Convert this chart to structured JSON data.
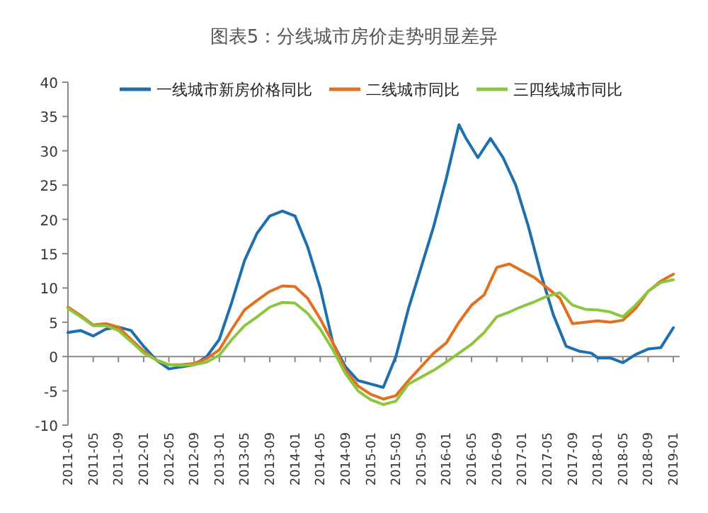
{
  "chart_data": {
    "type": "line",
    "title": "图表5：分线城市房价走势明显差异",
    "legend": "top",
    "x": [
      "2011-01",
      "2011-03",
      "2011-05",
      "2011-07",
      "2011-09",
      "2011-11",
      "2012-01",
      "2012-03",
      "2012-05",
      "2012-07",
      "2012-09",
      "2012-11",
      "2013-01",
      "2013-03",
      "2013-05",
      "2013-07",
      "2013-09",
      "2013-11",
      "2014-01",
      "2014-03",
      "2014-05",
      "2014-07",
      "2014-09",
      "2014-11",
      "2015-01",
      "2015-03",
      "2015-05",
      "2015-07",
      "2015-09",
      "2015-11",
      "2016-01",
      "2016-03",
      "2016-05",
      "2016-07",
      "2016-09",
      "2016-11",
      "2017-01",
      "2017-03",
      "2017-05",
      "2017-07",
      "2017-09",
      "2017-11",
      "2018-01",
      "2018-03",
      "2018-05",
      "2018-07",
      "2018-09",
      "2018-11",
      "2019-01"
    ],
    "xlim": [
      "2011-01",
      "2019-02"
    ],
    "xticks": [
      "2011-01",
      "2011-05",
      "2011-09",
      "2012-01",
      "2012-05",
      "2012-09",
      "2013-01",
      "2013-05",
      "2013-09",
      "2014-01",
      "2014-05",
      "2014-09",
      "2015-01",
      "2015-05",
      "2015-09",
      "2016-01",
      "2016-05",
      "2016-09",
      "2017-01",
      "2017-05",
      "2017-09",
      "2018-01",
      "2018-05",
      "2018-09",
      "2019-01"
    ],
    "ylim": [
      -10,
      40
    ],
    "yticks": [
      -10,
      -5,
      0,
      5,
      10,
      15,
      20,
      25,
      30,
      35,
      40
    ],
    "series": [
      {
        "name": "一线城市新房价格同比",
        "color": "#1f6fad",
        "x": [
          "2011-01",
          "2011-03",
          "2011-05",
          "2011-07",
          "2011-09",
          "2011-11",
          "2012-01",
          "2012-03",
          "2012-05",
          "2012-07",
          "2012-09",
          "2012-11",
          "2013-01",
          "2013-03",
          "2013-05",
          "2013-07",
          "2013-09",
          "2013-11",
          "2014-01",
          "2014-03",
          "2014-05",
          "2014-07",
          "2014-09",
          "2014-11",
          "2015-01",
          "2015-03",
          "2015-05",
          "2015-07",
          "2015-09",
          "2015-11",
          "2016-01",
          "2016-03",
          "2016-04",
          "2016-06",
          "2016-08",
          "2016-10",
          "2016-12",
          "2017-02",
          "2017-04",
          "2017-06",
          "2017-08",
          "2017-10",
          "2017-12",
          "2018-01",
          "2018-03",
          "2018-05",
          "2018-07",
          "2018-09",
          "2018-11",
          "2019-01"
        ],
        "values": [
          3.5,
          3.8,
          3.0,
          4.0,
          4.3,
          3.8,
          1.5,
          -0.5,
          -1.8,
          -1.5,
          -1.2,
          0,
          2.5,
          8,
          14,
          18,
          20.5,
          21.2,
          20.5,
          16,
          10,
          2,
          -1.5,
          -3.5,
          -4,
          -4.5,
          0,
          7,
          13,
          19,
          26,
          33.8,
          32,
          29,
          31.8,
          29,
          25,
          19,
          12,
          6,
          1.5,
          0.8,
          0.5,
          -0.2,
          -0.2,
          -0.9,
          0.3,
          1.1,
          1.3,
          4.2
        ]
      },
      {
        "name": "二线城市同比",
        "color": "#e2701f",
        "values": [
          7.2,
          6,
          4.6,
          4.8,
          4.3,
          2.5,
          0.8,
          -0.5,
          -1.2,
          -1.2,
          -1,
          -0.3,
          1,
          4,
          6.8,
          8.2,
          9.5,
          10.3,
          10.2,
          8.5,
          5.5,
          2,
          -2,
          -4.3,
          -5.5,
          -6.2,
          -5.7,
          -3.5,
          -1.5,
          0.5,
          2,
          5,
          7.5,
          9,
          13,
          13.5,
          12.5,
          11.5,
          10,
          8.5,
          4.8,
          5,
          5.2,
          5,
          5.3,
          7,
          9.5,
          11,
          12
        ]
      },
      {
        "name": "三四线城市同比",
        "color": "#8cc63f",
        "values": [
          7,
          5.8,
          4.5,
          4.5,
          3.8,
          2.2,
          0.5,
          -0.5,
          -1.2,
          -1.3,
          -1.2,
          -0.8,
          0.2,
          2.5,
          4.5,
          5.8,
          7.2,
          7.9,
          7.8,
          6.3,
          4,
          1,
          -2.5,
          -5,
          -6.3,
          -7,
          -6.5,
          -4,
          -3,
          -2,
          -0.8,
          0.5,
          1.8,
          3.5,
          5.8,
          6.5,
          7.3,
          8,
          8.8,
          9.3,
          7.5,
          6.9,
          6.8,
          6.5,
          5.8,
          7.5,
          9.5,
          10.8,
          11.2
        ]
      }
    ]
  }
}
